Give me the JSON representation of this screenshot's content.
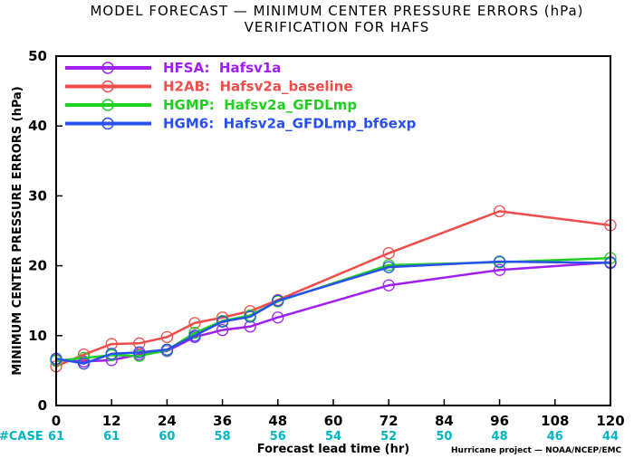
{
  "chart_data": {
    "type": "line",
    "title": "MODEL FORECAST — MINIMUM CENTER PRESSURE ERRORS (hPa)",
    "subtitle": "VERIFICATION FOR HAFS",
    "xlabel": "Forecast lead time (hr)",
    "ylabel": "MINIMUM CENTER PRESSURE ERRORS (hPa)",
    "xlim": [
      0,
      120
    ],
    "ylim": [
      0,
      50
    ],
    "x_ticks": [
      0,
      12,
      24,
      36,
      48,
      60,
      72,
      84,
      96,
      108,
      120
    ],
    "y_ticks": [
      0,
      10,
      20,
      30,
      40,
      50
    ],
    "grid": false,
    "legend_position": "top-left",
    "case_label": "#CASE",
    "case_counts": [
      {
        "x": 0,
        "n": "61"
      },
      {
        "x": 12,
        "n": "61"
      },
      {
        "x": 24,
        "n": "60"
      },
      {
        "x": 36,
        "n": "58"
      },
      {
        "x": 48,
        "n": "56"
      },
      {
        "x": 60,
        "n": "54"
      },
      {
        "x": 72,
        "n": "52"
      },
      {
        "x": 84,
        "n": "50"
      },
      {
        "x": 96,
        "n": "48"
      },
      {
        "x": 108,
        "n": "46"
      },
      {
        "x": 120,
        "n": "44"
      }
    ],
    "credit": "Hurricane project — NOAA/NCEP/EMC",
    "series": [
      {
        "name": "HFSA:  Hafsv1a",
        "color": "#a020f0",
        "x": [
          0,
          6,
          12,
          18,
          24,
          30,
          36,
          42,
          48,
          72,
          96,
          120
        ],
        "y": [
          6.5,
          6.3,
          6.5,
          7.3,
          7.8,
          9.8,
          10.8,
          11.3,
          12.6,
          17.2,
          19.4,
          20.5
        ]
      },
      {
        "name": "H2AB:  Hafsv2a_baseline",
        "color": "#f04c4c",
        "x": [
          0,
          6,
          12,
          18,
          24,
          30,
          36,
          42,
          48,
          72,
          96,
          120
        ],
        "y": [
          5.6,
          7.3,
          8.8,
          8.9,
          9.8,
          11.8,
          12.6,
          13.5,
          15.1,
          21.8,
          27.8,
          25.8
        ]
      },
      {
        "name": "HGMP:  Hafsv2a_GFDLmp",
        "color": "#20d020",
        "x": [
          0,
          6,
          12,
          18,
          24,
          30,
          36,
          42,
          48,
          72,
          96,
          120
        ],
        "y": [
          6.4,
          6.8,
          7.2,
          7.1,
          7.9,
          10.4,
          12.1,
          12.9,
          14.9,
          20.1,
          20.5,
          21.1
        ]
      },
      {
        "name": "HGM6:  Hafsv2a_GFDLmp_bf6exp",
        "color": "#2850f0",
        "x": [
          0,
          6,
          12,
          18,
          24,
          30,
          36,
          42,
          48,
          72,
          96,
          120
        ],
        "y": [
          6.7,
          6.0,
          7.4,
          7.6,
          8.0,
          10.0,
          12.0,
          12.7,
          15.0,
          19.8,
          20.6,
          20.4
        ]
      }
    ]
  }
}
